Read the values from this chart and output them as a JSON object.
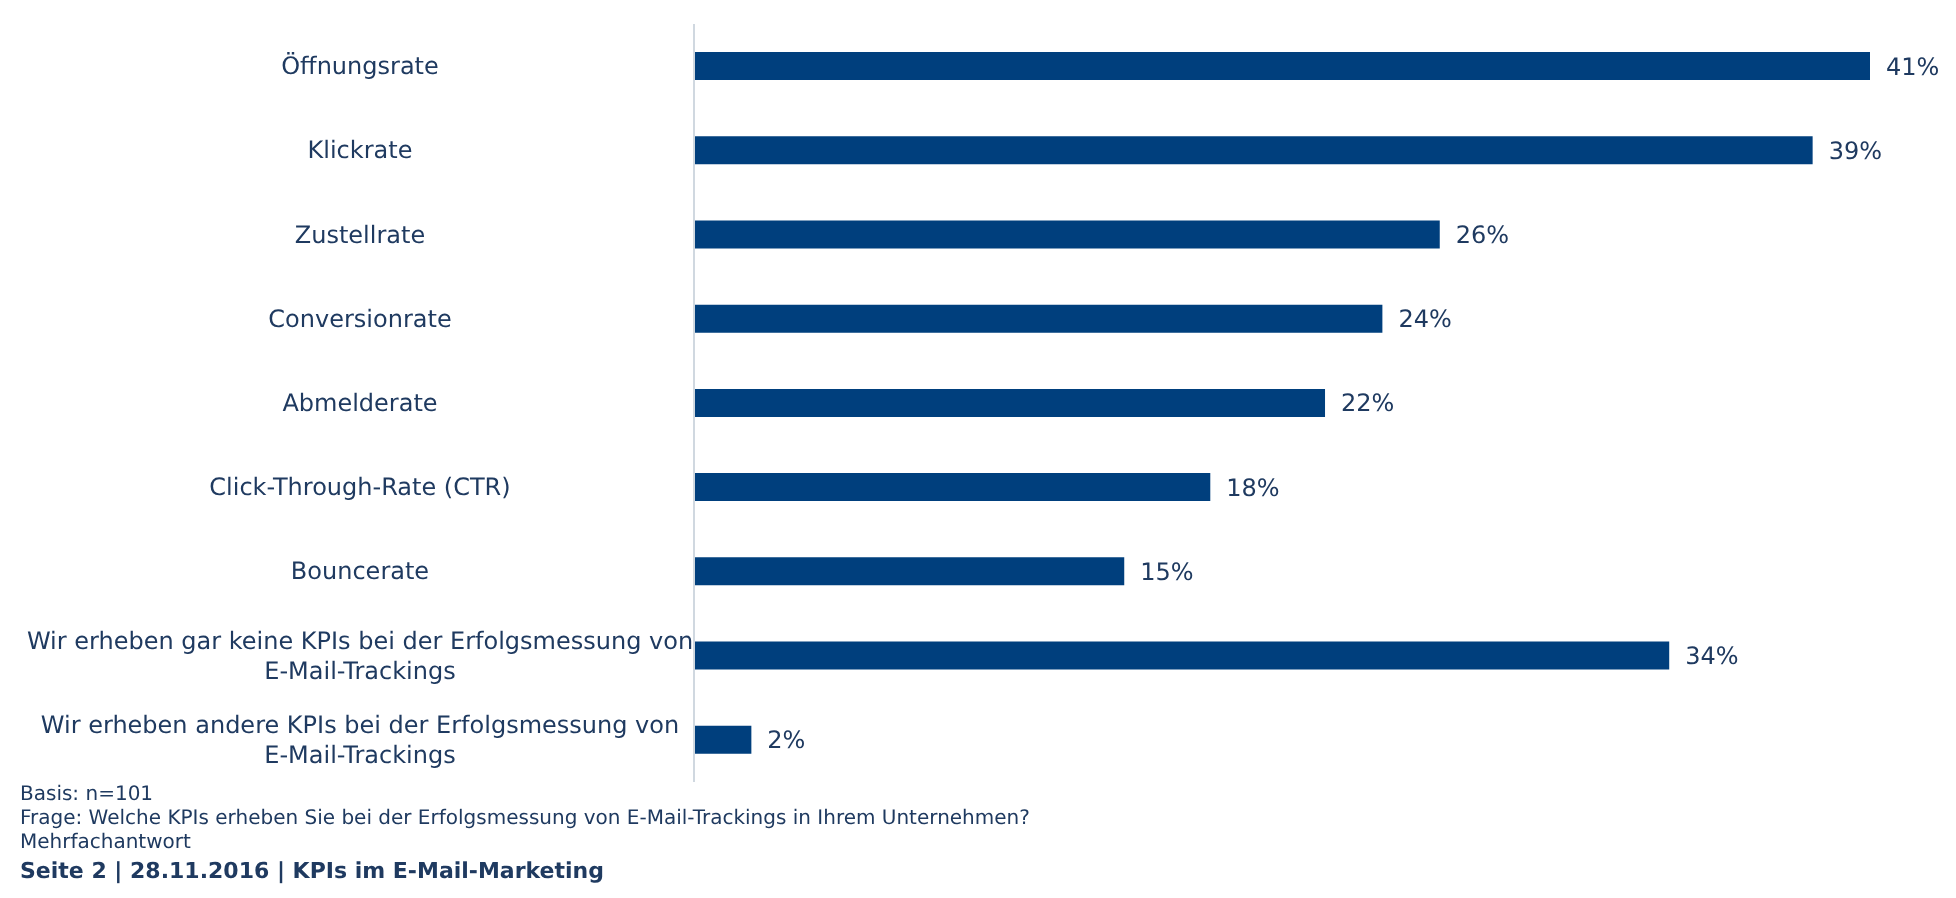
{
  "chart_data": {
    "type": "bar",
    "orientation": "horizontal",
    "categories": [
      "Öffnungsrate",
      "Klickrate",
      "Zustellrate",
      "Conversionrate",
      "Abmelderate",
      "Click-Through-Rate (CTR)",
      "Bouncerate",
      "Wir erheben gar keine KPIs bei der Erfolgsmessung von E-Mail-Trackings",
      "Wir erheben andere KPIs bei der Erfolgsmessung von E-Mail-Trackings"
    ],
    "values": [
      41,
      39,
      26,
      24,
      22,
      18,
      15,
      34,
      2
    ],
    "value_labels": [
      "41%",
      "39%",
      "26%",
      "24%",
      "22%",
      "18%",
      "15%",
      "34%",
      "2%"
    ],
    "color": "#003f7d",
    "xlim": [
      0,
      41
    ],
    "tick_labels": "y",
    "grid": false,
    "legend": false,
    "annotations": [
      "Basis: n=101",
      "Frage: Welche KPIs erheben Sie bei der Erfolgsmessung von E-Mail-Trackings in Ihrem Unternehmen?",
      "Mehrfachantwort",
      "Seite 2 | 28.11.2016 | KPIs im E-Mail-Marketing"
    ]
  }
}
